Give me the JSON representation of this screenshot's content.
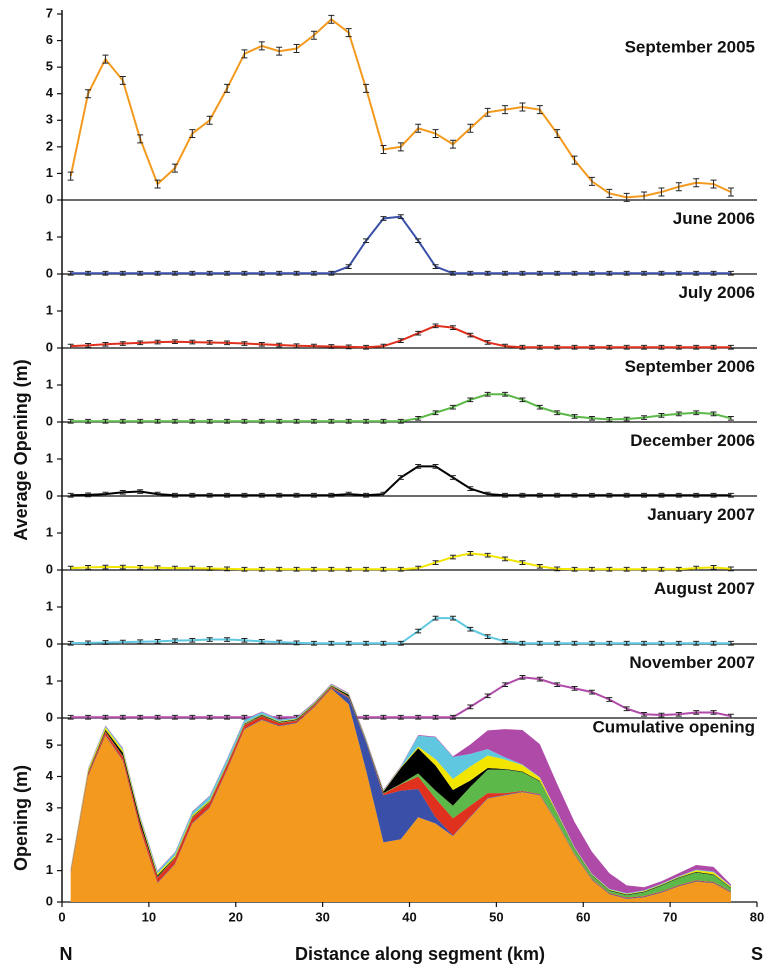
{
  "chart_data": {
    "type": "line",
    "x": [
      1,
      3,
      5,
      7,
      9,
      11,
      13,
      15,
      17,
      19,
      21,
      23,
      25,
      27,
      29,
      31,
      33,
      35,
      37,
      39,
      41,
      43,
      45,
      47,
      49,
      51,
      53,
      55,
      57,
      59,
      61,
      63,
      65,
      67,
      69,
      71,
      73,
      75,
      77
    ],
    "xlim": [
      0,
      80
    ],
    "xticks": [
      0,
      10,
      20,
      30,
      40,
      50,
      60,
      70,
      80
    ],
    "xlabel": "Distance along segment (km)",
    "x_start_label": "N",
    "x_end_label": "S",
    "ylabel": "Average Opening (m)",
    "series": [
      {
        "name": "September 2005",
        "color": "#f39a1e",
        "error": 0.15,
        "ylim": [
          0,
          7
        ],
        "yticks": [
          0,
          1,
          2,
          3,
          4,
          5,
          6,
          7
        ],
        "values": [
          0.9,
          4.0,
          5.3,
          4.5,
          2.3,
          0.6,
          1.2,
          2.5,
          3.0,
          4.2,
          5.5,
          5.8,
          5.6,
          5.7,
          6.2,
          6.8,
          6.3,
          4.2,
          1.9,
          2.0,
          2.7,
          2.5,
          2.1,
          2.7,
          3.3,
          3.4,
          3.5,
          3.4,
          2.5,
          1.5,
          0.7,
          0.25,
          0.1,
          0.15,
          0.3,
          0.5,
          0.65,
          0.6,
          0.3
        ]
      },
      {
        "name": "June 2006",
        "color": "#3a4fa8",
        "error": 0.05,
        "ylim": [
          0,
          1.8
        ],
        "yticks": [
          0,
          1
        ],
        "values": [
          0.02,
          0.02,
          0.02,
          0.02,
          0.02,
          0.02,
          0.02,
          0.02,
          0.02,
          0.02,
          0.02,
          0.02,
          0.02,
          0.02,
          0.02,
          0.02,
          0.2,
          0.9,
          1.5,
          1.55,
          0.9,
          0.2,
          0.02,
          0.02,
          0.02,
          0.02,
          0.02,
          0.02,
          0.02,
          0.02,
          0.02,
          0.02,
          0.02,
          0.02,
          0.02,
          0.02,
          0.02,
          0.02,
          0.02
        ]
      },
      {
        "name": "July 2006",
        "color": "#e0301e",
        "error": 0.05,
        "ylim": [
          0,
          1.8
        ],
        "yticks": [
          0,
          1
        ],
        "values": [
          0.05,
          0.07,
          0.1,
          0.12,
          0.14,
          0.16,
          0.17,
          0.16,
          0.15,
          0.14,
          0.12,
          0.1,
          0.08,
          0.06,
          0.05,
          0.04,
          0.03,
          0.02,
          0.05,
          0.2,
          0.4,
          0.6,
          0.55,
          0.35,
          0.15,
          0.05,
          0.02,
          0.02,
          0.02,
          0.02,
          0.02,
          0.02,
          0.02,
          0.02,
          0.02,
          0.02,
          0.02,
          0.02,
          0.02
        ]
      },
      {
        "name": "September 2006",
        "color": "#5cb848",
        "error": 0.05,
        "ylim": [
          0,
          1.8
        ],
        "yticks": [
          0,
          1
        ],
        "values": [
          0.02,
          0.02,
          0.02,
          0.02,
          0.02,
          0.02,
          0.02,
          0.02,
          0.02,
          0.02,
          0.02,
          0.02,
          0.02,
          0.02,
          0.02,
          0.02,
          0.02,
          0.02,
          0.02,
          0.02,
          0.1,
          0.25,
          0.4,
          0.6,
          0.75,
          0.75,
          0.6,
          0.4,
          0.25,
          0.15,
          0.1,
          0.07,
          0.08,
          0.12,
          0.18,
          0.22,
          0.25,
          0.22,
          0.1
        ]
      },
      {
        "name": "December 2006",
        "color": "#000000",
        "error": 0.05,
        "ylim": [
          0,
          1.8
        ],
        "yticks": [
          0,
          1
        ],
        "values": [
          0.02,
          0.03,
          0.05,
          0.1,
          0.12,
          0.05,
          0.02,
          0.02,
          0.02,
          0.02,
          0.02,
          0.02,
          0.02,
          0.02,
          0.02,
          0.02,
          0.05,
          0.02,
          0.05,
          0.5,
          0.8,
          0.8,
          0.5,
          0.2,
          0.05,
          0.02,
          0.02,
          0.02,
          0.02,
          0.02,
          0.02,
          0.02,
          0.02,
          0.02,
          0.02,
          0.02,
          0.02,
          0.02,
          0.02
        ]
      },
      {
        "name": "January 2007",
        "color": "#f2e600",
        "error": 0.05,
        "ylim": [
          0,
          1.8
        ],
        "yticks": [
          0,
          1
        ],
        "values": [
          0.05,
          0.07,
          0.08,
          0.08,
          0.07,
          0.06,
          0.05,
          0.05,
          0.04,
          0.03,
          0.02,
          0.02,
          0.02,
          0.02,
          0.02,
          0.02,
          0.02,
          0.02,
          0.02,
          0.02,
          0.05,
          0.2,
          0.35,
          0.45,
          0.4,
          0.3,
          0.2,
          0.1,
          0.03,
          0.02,
          0.02,
          0.02,
          0.02,
          0.02,
          0.02,
          0.02,
          0.05,
          0.07,
          0.03
        ]
      },
      {
        "name": "August 2007",
        "color": "#5fc8e0",
        "error": 0.05,
        "ylim": [
          0,
          1.8
        ],
        "yticks": [
          0,
          1
        ],
        "values": [
          0.02,
          0.03,
          0.04,
          0.05,
          0.06,
          0.07,
          0.09,
          0.1,
          0.12,
          0.12,
          0.1,
          0.07,
          0.05,
          0.03,
          0.02,
          0.02,
          0.02,
          0.02,
          0.02,
          0.02,
          0.35,
          0.7,
          0.7,
          0.4,
          0.2,
          0.07,
          0.02,
          0.02,
          0.02,
          0.02,
          0.02,
          0.02,
          0.02,
          0.02,
          0.02,
          0.02,
          0.02,
          0.02,
          0.02
        ]
      },
      {
        "name": "November 2007",
        "color": "#b04aa8",
        "error": 0.05,
        "ylim": [
          0,
          1.8
        ],
        "yticks": [
          0,
          1
        ],
        "values": [
          0.02,
          0.02,
          0.02,
          0.02,
          0.02,
          0.02,
          0.02,
          0.02,
          0.02,
          0.02,
          0.02,
          0.02,
          0.02,
          0.02,
          0.02,
          0.02,
          0.02,
          0.02,
          0.02,
          0.02,
          0.02,
          0.02,
          0.02,
          0.3,
          0.6,
          0.9,
          1.1,
          1.05,
          0.9,
          0.8,
          0.7,
          0.5,
          0.25,
          0.1,
          0.08,
          0.1,
          0.15,
          0.15,
          0.05
        ]
      }
    ],
    "stack": {
      "title": "Cumulative opening",
      "ylabel": "Opening (m)",
      "ylim": [
        0,
        5.8
      ],
      "yticks": [
        0,
        1,
        2,
        3,
        4,
        5
      ]
    }
  }
}
